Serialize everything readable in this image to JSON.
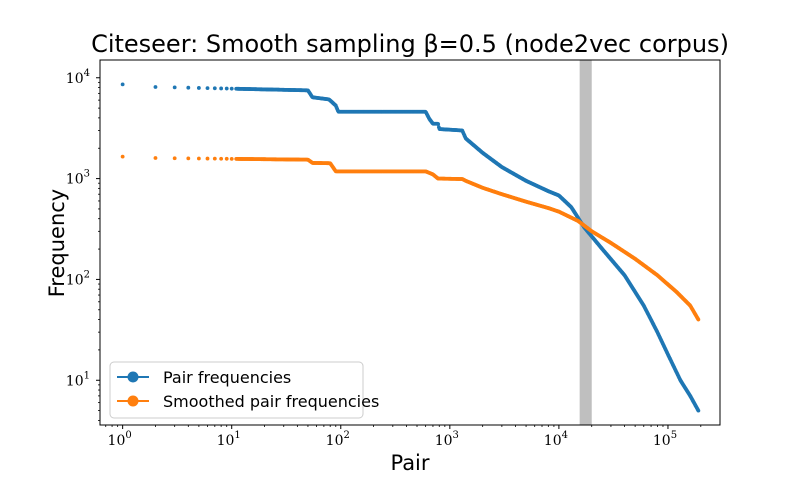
{
  "chart_data": {
    "type": "scatter",
    "title": "Citeseer: Smooth sampling β=0.5 (node2vec corpus)",
    "xlabel": "Pair",
    "ylabel": "Frequency",
    "xscale": "log",
    "yscale": "log",
    "xlim": [
      0.62,
      300000
    ],
    "ylim": [
      3.6,
      15000
    ],
    "x_ticks": [
      {
        "base": "10",
        "exp": "0",
        "value": 1
      },
      {
        "base": "10",
        "exp": "1",
        "value": 10
      },
      {
        "base": "10",
        "exp": "2",
        "value": 100
      },
      {
        "base": "10",
        "exp": "3",
        "value": 1000
      },
      {
        "base": "10",
        "exp": "4",
        "value": 10000
      },
      {
        "base": "10",
        "exp": "5",
        "value": 100000
      }
    ],
    "y_ticks": [
      {
        "base": "10",
        "exp": "1",
        "value": 10
      },
      {
        "base": "10",
        "exp": "2",
        "value": 100
      },
      {
        "base": "10",
        "exp": "3",
        "value": 1000
      },
      {
        "base": "10",
        "exp": "4",
        "value": 10000
      }
    ],
    "highlight_band": {
      "x_from": 15500,
      "x_to": 20000,
      "color": "#bfbfbf"
    },
    "legend": {
      "position": "lower-left"
    },
    "series": [
      {
        "name": "Pair frequencies",
        "color": "#1f77b4",
        "points": [
          [
            1,
            8600
          ],
          [
            2,
            8100
          ],
          [
            50,
            7500
          ],
          [
            55,
            6400
          ],
          [
            78,
            6100
          ],
          [
            90,
            5300
          ],
          [
            95,
            4600
          ],
          [
            600,
            4600
          ],
          [
            650,
            3900
          ],
          [
            700,
            3500
          ],
          [
            780,
            3500
          ],
          [
            800,
            3100
          ],
          [
            1300,
            3000
          ],
          [
            1400,
            2500
          ],
          [
            2000,
            1800
          ],
          [
            3000,
            1300
          ],
          [
            5000,
            950
          ],
          [
            8000,
            750
          ],
          [
            10000,
            680
          ],
          [
            13000,
            520
          ],
          [
            17000,
            330
          ],
          [
            25000,
            200
          ],
          [
            40000,
            110
          ],
          [
            60000,
            55
          ],
          [
            80000,
            30
          ],
          [
            100000,
            18
          ],
          [
            130000,
            10
          ],
          [
            160000,
            7
          ],
          [
            190000,
            5
          ]
        ]
      },
      {
        "name": "Smoothed pair frequencies",
        "color": "#ff7f0e",
        "points": [
          [
            1,
            1650
          ],
          [
            2,
            1600
          ],
          [
            50,
            1540
          ],
          [
            55,
            1430
          ],
          [
            80,
            1420
          ],
          [
            90,
            1180
          ],
          [
            600,
            1180
          ],
          [
            700,
            1100
          ],
          [
            780,
            1000
          ],
          [
            1300,
            990
          ],
          [
            1400,
            950
          ],
          [
            2000,
            810
          ],
          [
            3000,
            700
          ],
          [
            5000,
            590
          ],
          [
            8000,
            510
          ],
          [
            10000,
            470
          ],
          [
            15000,
            380
          ],
          [
            20000,
            300
          ],
          [
            30000,
            230
          ],
          [
            50000,
            160
          ],
          [
            80000,
            110
          ],
          [
            120000,
            75
          ],
          [
            160000,
            55
          ],
          [
            190000,
            40
          ]
        ]
      }
    ]
  }
}
